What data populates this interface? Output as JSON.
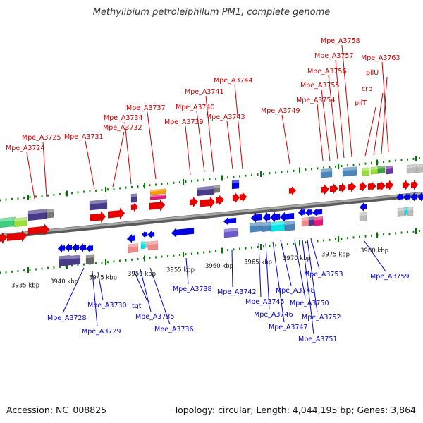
{
  "title": "Methylibium petroleiphilum PM1, complete genome",
  "footer": {
    "accession_label": "Accession:",
    "accession": "NC_008825",
    "topology_label": "Topology:",
    "topology": "circular",
    "length_label": "Length:",
    "length": "4,044,195 bp",
    "genes_label": "Genes:",
    "genes": "3,864"
  },
  "colors": {
    "forward_gene": "#e60000",
    "reverse_gene": "#0000e6",
    "forward_label": "#cc0000",
    "reverse_label": "#0000cc",
    "backbone": "#8c8c8c",
    "tick": "#007700"
  },
  "scale_labels": [
    "3935 kbp",
    "3940 kbp",
    "3945 kbp",
    "3950 kbp",
    "3955 kbp",
    "3960 kbp",
    "3965 kbp",
    "3970 kbp",
    "3975 kbp",
    "3980 kbp"
  ],
  "forward_labels": [
    "Mpe_A3724",
    "Mpe_A3725",
    "Mpe_A3731",
    "Mpe_A3732",
    "Mpe_A3734",
    "Mpe_A3737",
    "Mpe_A3739",
    "Mpe_A3740",
    "Mpe_A3741",
    "Mpe_A3743",
    "Mpe_A3744",
    "Mpe_A3749",
    "Mpe_A3754",
    "Mpe_A3755",
    "Mpe_A3756",
    "Mpe_A3757",
    "Mpe_A3758",
    "pilT",
    "crp",
    "pilU",
    "Mpe_A3763"
  ],
  "reverse_labels": [
    "Mpe_A3728",
    "Mpe_A3729",
    "Mpe_A3730",
    "tgt",
    "Mpe_A3735",
    "Mpe_A3736",
    "Mpe_A3738",
    "Mpe_A3742",
    "Mpe_A3745",
    "Mpe_A3746",
    "Mpe_A3747",
    "Mpe_A3748",
    "Mpe_A3750",
    "Mpe_A3751",
    "Mpe_A3752",
    "Mpe_A3753",
    "Mpe_A3759"
  ]
}
